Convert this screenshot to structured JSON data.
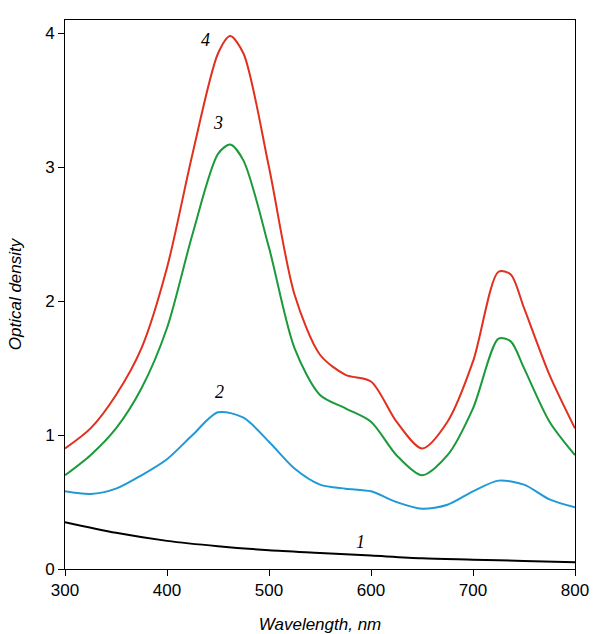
{
  "chart_data": {
    "type": "line",
    "x_label": "Wavelength, nm",
    "y_label": "Optical density",
    "xlim": [
      300,
      800
    ],
    "xticks": [
      300,
      400,
      500,
      600,
      700,
      800
    ],
    "ylim": [
      0,
      4.1
    ],
    "yticks": [
      0,
      1,
      2,
      3,
      4
    ],
    "grid": false,
    "series": [
      {
        "name": "1",
        "color": "#000000",
        "x": [
          300,
          350,
          400,
          450,
          500,
          550,
          600,
          650,
          700,
          750,
          800
        ],
        "values": [
          0.35,
          0.27,
          0.21,
          0.17,
          0.14,
          0.12,
          0.1,
          0.08,
          0.07,
          0.06,
          0.05
        ],
        "label_at": [
          590,
          0.2
        ]
      },
      {
        "name": "2",
        "color": "#1f9ad6",
        "x": [
          300,
          325,
          350,
          375,
          400,
          425,
          450,
          475,
          500,
          525,
          550,
          575,
          600,
          625,
          650,
          675,
          700,
          725,
          750,
          775,
          800
        ],
        "values": [
          0.58,
          0.56,
          0.6,
          0.7,
          0.82,
          1.0,
          1.17,
          1.13,
          0.95,
          0.75,
          0.63,
          0.6,
          0.58,
          0.5,
          0.45,
          0.48,
          0.58,
          0.66,
          0.63,
          0.52,
          0.46
        ],
        "label_at": [
          451,
          1.32
        ]
      },
      {
        "name": "3",
        "color": "#1a9a3a",
        "x": [
          300,
          325,
          350,
          375,
          400,
          425,
          450,
          462,
          475,
          500,
          525,
          550,
          575,
          600,
          625,
          650,
          675,
          700,
          725,
          737,
          750,
          775,
          800
        ],
        "values": [
          0.7,
          0.85,
          1.05,
          1.35,
          1.8,
          2.5,
          3.1,
          3.17,
          3.05,
          2.4,
          1.65,
          1.3,
          1.2,
          1.1,
          0.85,
          0.7,
          0.85,
          1.2,
          1.72,
          1.7,
          1.5,
          1.1,
          0.85
        ],
        "label_at": [
          450,
          3.33
        ]
      },
      {
        "name": "4",
        "color": "#e0301e",
        "x": [
          300,
          325,
          350,
          375,
          400,
          425,
          450,
          462,
          475,
          500,
          525,
          550,
          575,
          600,
          625,
          650,
          675,
          700,
          725,
          737,
          750,
          775,
          800
        ],
        "values": [
          0.9,
          1.05,
          1.3,
          1.65,
          2.25,
          3.1,
          3.85,
          3.98,
          3.85,
          3.0,
          2.05,
          1.6,
          1.45,
          1.4,
          1.1,
          0.9,
          1.1,
          1.55,
          2.22,
          2.2,
          1.95,
          1.45,
          1.05
        ],
        "label_at": [
          438,
          3.95
        ]
      }
    ]
  }
}
